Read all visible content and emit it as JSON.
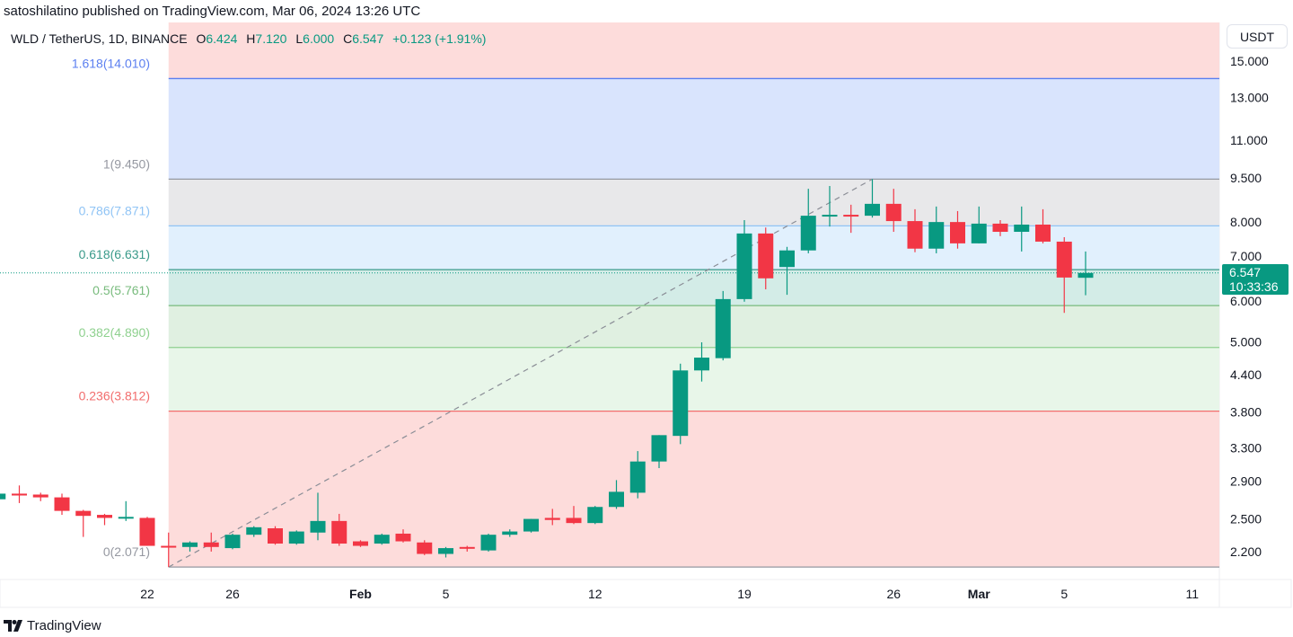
{
  "header": {
    "published": "satoshilatino published on TradingView.com, Mar 06, 2024 13:26 UTC"
  },
  "legend": {
    "symbol": "WLD / TetherUS, 1D, BINANCE",
    "open_label": "O",
    "open": "6.424",
    "high_label": "H",
    "high": "7.120",
    "low_label": "L",
    "low": "6.000",
    "close_label": "C",
    "close": "6.547",
    "change": "+0.123 (+1.91%)"
  },
  "currency": "USDT",
  "last_price": {
    "value": "6.547",
    "countdown": "10:33:36"
  },
  "footer": {
    "brand": "TradingView"
  },
  "colors": {
    "up": "#089981",
    "down": "#f23645"
  },
  "chart_data": {
    "type": "candlestick",
    "scale": "log",
    "y_ticks": [
      {
        "v": 15,
        "label": "15.000"
      },
      {
        "v": 13,
        "label": "13.000"
      },
      {
        "v": 11,
        "label": "11.000"
      },
      {
        "v": 9.5,
        "label": "9.500"
      },
      {
        "v": 8,
        "label": "8.000"
      },
      {
        "v": 7,
        "label": "7.000"
      },
      {
        "v": 6,
        "label": "6.000"
      },
      {
        "v": 5,
        "label": "5.000"
      },
      {
        "v": 4.4,
        "label": "4.400"
      },
      {
        "v": 3.8,
        "label": "3.800"
      },
      {
        "v": 3.3,
        "label": "3.300"
      },
      {
        "v": 2.9,
        "label": "2.900"
      },
      {
        "v": 2.5,
        "label": "2.500"
      },
      {
        "v": 2.2,
        "label": "2.200"
      }
    ],
    "x_ticks": [
      {
        "date": "2024-01-22",
        "label": "22",
        "bold": false
      },
      {
        "date": "2024-01-26",
        "label": "26",
        "bold": false
      },
      {
        "date": "2024-02-01",
        "label": "Feb",
        "bold": true
      },
      {
        "date": "2024-02-05",
        "label": "5",
        "bold": false
      },
      {
        "date": "2024-02-12",
        "label": "12",
        "bold": false
      },
      {
        "date": "2024-02-19",
        "label": "19",
        "bold": false
      },
      {
        "date": "2024-02-26",
        "label": "26",
        "bold": false
      },
      {
        "date": "2024-03-01",
        "label": "Mar",
        "bold": true
      },
      {
        "date": "2024-03-05",
        "label": "5",
        "bold": false
      },
      {
        "date": "2024-03-11",
        "label": "11",
        "bold": false
      }
    ],
    "candles": [
      [
        "2024-01-15",
        2.7,
        2.77,
        2.68,
        2.76
      ],
      [
        "2024-01-16",
        2.76,
        2.85,
        2.66,
        2.74
      ],
      [
        "2024-01-17",
        2.75,
        2.77,
        2.68,
        2.72
      ],
      [
        "2024-01-18",
        2.72,
        2.76,
        2.54,
        2.58
      ],
      [
        "2024-01-19",
        2.58,
        2.59,
        2.33,
        2.53
      ],
      [
        "2024-01-20",
        2.54,
        2.55,
        2.44,
        2.51
      ],
      [
        "2024-01-21",
        2.51,
        2.68,
        2.48,
        2.52
      ],
      [
        "2024-01-22",
        2.51,
        2.52,
        2.25,
        2.25
      ],
      [
        "2024-01-23",
        2.25,
        2.37,
        2.071,
        2.24
      ],
      [
        "2024-01-24",
        2.24,
        2.29,
        2.2,
        2.28
      ],
      [
        "2024-01-25",
        2.28,
        2.37,
        2.2,
        2.24
      ],
      [
        "2024-01-26",
        2.23,
        2.36,
        2.22,
        2.35
      ],
      [
        "2024-01-27",
        2.35,
        2.43,
        2.33,
        2.42
      ],
      [
        "2024-01-28",
        2.41,
        2.43,
        2.26,
        2.27
      ],
      [
        "2024-01-29",
        2.27,
        2.39,
        2.26,
        2.38
      ],
      [
        "2024-01-30",
        2.37,
        2.77,
        2.3,
        2.48
      ],
      [
        "2024-01-31",
        2.48,
        2.55,
        2.25,
        2.27
      ],
      [
        "2024-02-01",
        2.29,
        2.3,
        2.24,
        2.25
      ],
      [
        "2024-02-02",
        2.27,
        2.36,
        2.26,
        2.35
      ],
      [
        "2024-02-03",
        2.36,
        2.4,
        2.28,
        2.29
      ],
      [
        "2024-02-04",
        2.28,
        2.3,
        2.17,
        2.18
      ],
      [
        "2024-02-05",
        2.18,
        2.24,
        2.15,
        2.23
      ],
      [
        "2024-02-06",
        2.24,
        2.25,
        2.2,
        2.23
      ],
      [
        "2024-02-07",
        2.21,
        2.36,
        2.2,
        2.35
      ],
      [
        "2024-02-08",
        2.35,
        2.4,
        2.33,
        2.38
      ],
      [
        "2024-02-09",
        2.38,
        2.5,
        2.37,
        2.5
      ],
      [
        "2024-02-10",
        2.51,
        2.6,
        2.44,
        2.49
      ],
      [
        "2024-02-11",
        2.51,
        2.63,
        2.45,
        2.46
      ],
      [
        "2024-02-12",
        2.46,
        2.63,
        2.45,
        2.62
      ],
      [
        "2024-02-13",
        2.62,
        2.91,
        2.6,
        2.78
      ],
      [
        "2024-02-14",
        2.77,
        3.26,
        2.71,
        3.13
      ],
      [
        "2024-02-15",
        3.13,
        3.47,
        3.05,
        3.47
      ],
      [
        "2024-02-16",
        3.46,
        4.59,
        3.35,
        4.47
      ],
      [
        "2024-02-17",
        4.47,
        4.99,
        4.28,
        4.7
      ],
      [
        "2024-02-18",
        4.69,
        6.1,
        4.65,
        5.91
      ],
      [
        "2024-02-19",
        5.91,
        8.05,
        5.85,
        7.64
      ],
      [
        "2024-02-20",
        7.64,
        7.82,
        6.14,
        6.41
      ],
      [
        "2024-02-21",
        6.7,
        7.25,
        6.01,
        7.15
      ],
      [
        "2024-02-22",
        7.15,
        9.1,
        7.07,
        8.19
      ],
      [
        "2024-02-23",
        8.19,
        9.2,
        7.85,
        8.22
      ],
      [
        "2024-02-24",
        8.22,
        8.55,
        7.66,
        8.19
      ],
      [
        "2024-02-25",
        8.19,
        9.45,
        8.13,
        8.58
      ],
      [
        "2024-02-26",
        8.58,
        9.1,
        7.69,
        8.02
      ],
      [
        "2024-02-27",
        8.02,
        8.4,
        7.1,
        7.2
      ],
      [
        "2024-02-28",
        7.2,
        8.49,
        7.07,
        7.99
      ],
      [
        "2024-02-29",
        7.99,
        8.34,
        7.2,
        7.35
      ],
      [
        "2024-03-01",
        7.35,
        8.49,
        7.35,
        7.94
      ],
      [
        "2024-03-02",
        7.94,
        8.05,
        7.56,
        7.69
      ],
      [
        "2024-03-03",
        7.69,
        8.49,
        7.12,
        7.91
      ],
      [
        "2024-03-04",
        7.91,
        8.4,
        7.35,
        7.4
      ],
      [
        "2024-03-05",
        7.4,
        7.53,
        5.6,
        6.43
      ],
      [
        "2024-03-06",
        6.424,
        7.12,
        6.0,
        6.547
      ]
    ],
    "fibonacci": {
      "start": {
        "date": "2024-01-23",
        "price": 2.071
      },
      "end": {
        "date": "2024-02-25",
        "price": 9.45
      },
      "levels": [
        {
          "ratio": "1.618",
          "price": 14.01,
          "label": "1.618(14.010)",
          "color": "#5b7ff0",
          "fill": "#d9e4fd"
        },
        {
          "ratio": "1",
          "price": 9.45,
          "label": "1(9.450)",
          "color": "#9598a1",
          "fill": "#e8e8ea"
        },
        {
          "ratio": "0.786",
          "price": 7.871,
          "label": "0.786(7.871)",
          "color": "#90c4f5",
          "fill": "#e1f0fd"
        },
        {
          "ratio": "0.618",
          "price": 6.631,
          "label": "0.618(6.631)",
          "color": "#3a9a8a",
          "fill": "#d3ece7"
        },
        {
          "ratio": "0.5",
          "price": 5.761,
          "label": "0.5(5.761)",
          "color": "#78bb7d",
          "fill": "#e0f0e1"
        },
        {
          "ratio": "0.382",
          "price": 4.89,
          "label": "0.382(4.890)",
          "color": "#8fd18f",
          "fill": "#e8f6e9"
        },
        {
          "ratio": "0.236",
          "price": 3.812,
          "label": "0.236(3.812)",
          "color": "#f26d6d",
          "fill": "#fddcdb"
        },
        {
          "ratio": "0",
          "price": 2.071,
          "label": "0(2.071)",
          "color": "#9598a1",
          "fill": "#fddcdb"
        }
      ],
      "outer_fill": "#fddcdb"
    }
  }
}
